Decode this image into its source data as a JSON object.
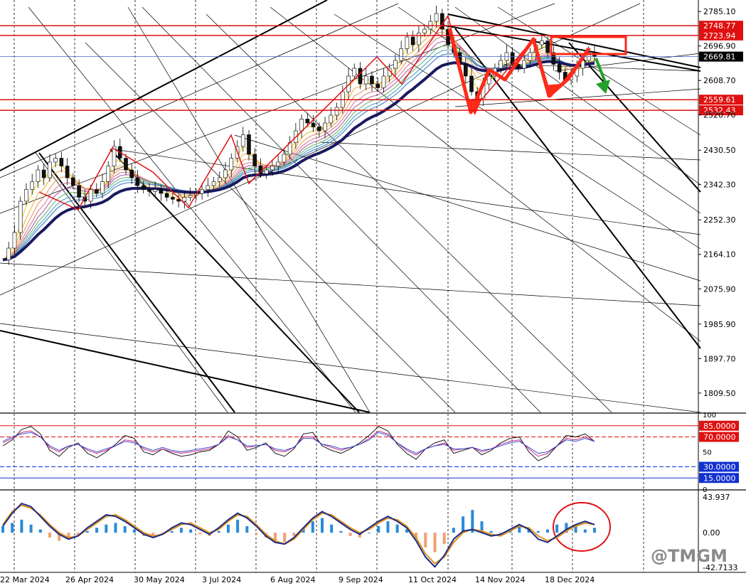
{
  "chart_data": {
    "type": "candlestick",
    "title": "",
    "main_panel": {
      "ylim": [
        1760,
        2800
      ],
      "price_ticks": [
        "2785.10",
        "2696.90",
        "2608.70",
        "2520.70",
        "2430.50",
        "2342.30",
        "2252.30",
        "2164.10",
        "2075.90",
        "1985.90",
        "1897.70",
        "1809.50"
      ],
      "date_labels": [
        "22 Mar 2024",
        "26 Apr 2024",
        "30 May 2024",
        "3 Jul 2024",
        "6 Aug 2024",
        "9 Sep 2024",
        "11 Oct 2024",
        "14 Nov 2024",
        "18 Dec 2024"
      ],
      "current_price": 2669.81,
      "current_price_label": "2669.81",
      "horizontal_levels": [
        {
          "value": 2748.77,
          "label": "2748.77",
          "color": "#e01010"
        },
        {
          "value": 2723.94,
          "label": "2723.94",
          "color": "#e01010"
        },
        {
          "value": 2559.61,
          "label": "2559.61",
          "color": "#e01010"
        },
        {
          "value": 2532.43,
          "label": "2532.43",
          "color": "#e01010"
        }
      ],
      "close_series": [
        2150,
        2180,
        2220,
        2300,
        2330,
        2350,
        2380,
        2360,
        2400,
        2410,
        2390,
        2360,
        2340,
        2310,
        2300,
        2330,
        2320,
        2350,
        2390,
        2440,
        2410,
        2380,
        2360,
        2340,
        2330,
        2325,
        2330,
        2320,
        2310,
        2305,
        2300,
        2310,
        2315,
        2320,
        2330,
        2340,
        2350,
        2360,
        2380,
        2410,
        2440,
        2470,
        2420,
        2390,
        2370,
        2380,
        2390,
        2400,
        2420,
        2450,
        2480,
        2510,
        2500,
        2490,
        2480,
        2500,
        2520,
        2540,
        2580,
        2620,
        2640,
        2600,
        2620,
        2600,
        2590,
        2620,
        2640,
        2660,
        2690,
        2720,
        2700,
        2730,
        2740,
        2760,
        2780,
        2740,
        2700,
        2680,
        2650,
        2620,
        2580,
        2560,
        2600,
        2620,
        2640,
        2660,
        2680,
        2650,
        2640,
        2660,
        2680,
        2700,
        2710,
        2680,
        2650,
        2630,
        2610,
        2620,
        2640,
        2660,
        2680,
        2670
      ],
      "channel_lines": 22
    },
    "rsi_panel": {
      "ylim": [
        0,
        100
      ],
      "levels": [
        {
          "value": 85,
          "label": "85.0000",
          "color": "#e01010"
        },
        {
          "value": 70,
          "label": "70.0000",
          "color": "#e01010"
        },
        {
          "value": 30,
          "label": "30.0000",
          "color": "#1030d0"
        },
        {
          "value": 15,
          "label": "15.0000",
          "color": "#1030d0"
        }
      ],
      "axis_ticks": [
        "100",
        "50",
        "0"
      ],
      "series": [
        {
          "name": "",
          "color": "#000000",
          "values": [
            58,
            66,
            80,
            84,
            74,
            52,
            44,
            56,
            62,
            48,
            42,
            50,
            60,
            72,
            68,
            50,
            46,
            54,
            48,
            44,
            46,
            50,
            52,
            60,
            78,
            70,
            52,
            56,
            62,
            48,
            44,
            54,
            74,
            76,
            58,
            52,
            48,
            54,
            62,
            72,
            84,
            78,
            60,
            48,
            40,
            54,
            62,
            66,
            48,
            52,
            56,
            46,
            52,
            62,
            68,
            70,
            50,
            38,
            44,
            58,
            72,
            70,
            74,
            64
          ]
        },
        {
          "name": "",
          "color": "#c01070",
          "values": [
            62,
            68,
            76,
            78,
            70,
            56,
            50,
            58,
            60,
            52,
            48,
            52,
            58,
            66,
            64,
            54,
            50,
            54,
            50,
            48,
            50,
            52,
            54,
            60,
            72,
            66,
            56,
            58,
            60,
            52,
            50,
            56,
            70,
            70,
            60,
            56,
            52,
            56,
            60,
            68,
            78,
            74,
            62,
            52,
            46,
            54,
            58,
            62,
            52,
            54,
            56,
            50,
            54,
            60,
            64,
            66,
            54,
            44,
            48,
            58,
            68,
            66,
            70,
            64
          ]
        },
        {
          "name": "",
          "color": "#2040d0",
          "values": [
            64,
            70,
            74,
            76,
            70,
            58,
            52,
            58,
            60,
            54,
            50,
            54,
            58,
            64,
            62,
            56,
            52,
            56,
            52,
            50,
            52,
            54,
            56,
            60,
            70,
            66,
            58,
            58,
            60,
            54,
            52,
            56,
            68,
            68,
            60,
            58,
            54,
            56,
            60,
            66,
            76,
            72,
            62,
            54,
            48,
            54,
            58,
            60,
            54,
            54,
            56,
            52,
            54,
            58,
            62,
            64,
            56,
            48,
            50,
            58,
            66,
            64,
            68,
            64
          ]
        }
      ]
    },
    "macd_panel": {
      "ylim": [
        -42.7133,
        43.937
      ],
      "axis_ticks": [
        "43.937",
        "0.00",
        "-42.7133"
      ],
      "histogram": [
        8,
        12,
        16,
        10,
        4,
        -6,
        -10,
        -8,
        -4,
        2,
        6,
        10,
        12,
        8,
        4,
        -4,
        -6,
        -2,
        2,
        6,
        4,
        -2,
        -4,
        2,
        10,
        16,
        8,
        -2,
        -6,
        -10,
        -12,
        -4,
        6,
        14,
        18,
        10,
        2,
        -4,
        -6,
        0,
        8,
        14,
        10,
        4,
        -8,
        -18,
        -24,
        -14,
        6,
        20,
        28,
        14,
        2,
        -2,
        4,
        10,
        6,
        2,
        4,
        10,
        12,
        8,
        4,
        6
      ],
      "series": [
        {
          "name": "",
          "color": "#e0901a",
          "values": [
            10,
            26,
            34,
            30,
            22,
            10,
            0,
            -6,
            -4,
            4,
            12,
            20,
            22,
            16,
            8,
            0,
            -4,
            -2,
            4,
            10,
            12,
            6,
            0,
            4,
            14,
            22,
            20,
            10,
            -2,
            -10,
            -14,
            -8,
            4,
            16,
            24,
            22,
            14,
            6,
            0,
            4,
            12,
            18,
            16,
            8,
            -6,
            -26,
            -38,
            -30,
            -12,
            0,
            4,
            2,
            -2,
            -4,
            2,
            8,
            6,
            -4,
            -10,
            -6,
            2,
            8,
            12,
            10
          ]
        },
        {
          "name": "",
          "color": "#1a2a8a",
          "values": [
            8,
            24,
            36,
            32,
            20,
            8,
            -2,
            -8,
            -4,
            6,
            14,
            22,
            20,
            14,
            6,
            -2,
            -6,
            -2,
            6,
            12,
            10,
            4,
            -2,
            6,
            16,
            24,
            18,
            8,
            -4,
            -12,
            -14,
            -6,
            6,
            18,
            26,
            20,
            12,
            4,
            -2,
            6,
            14,
            20,
            14,
            6,
            -10,
            -30,
            -42,
            -28,
            -8,
            2,
            4,
            0,
            -4,
            -2,
            4,
            10,
            4,
            -8,
            -12,
            -4,
            4,
            10,
            14,
            10
          ]
        }
      ]
    }
  },
  "annotations": {
    "watermark_handle": "@TMGM"
  }
}
